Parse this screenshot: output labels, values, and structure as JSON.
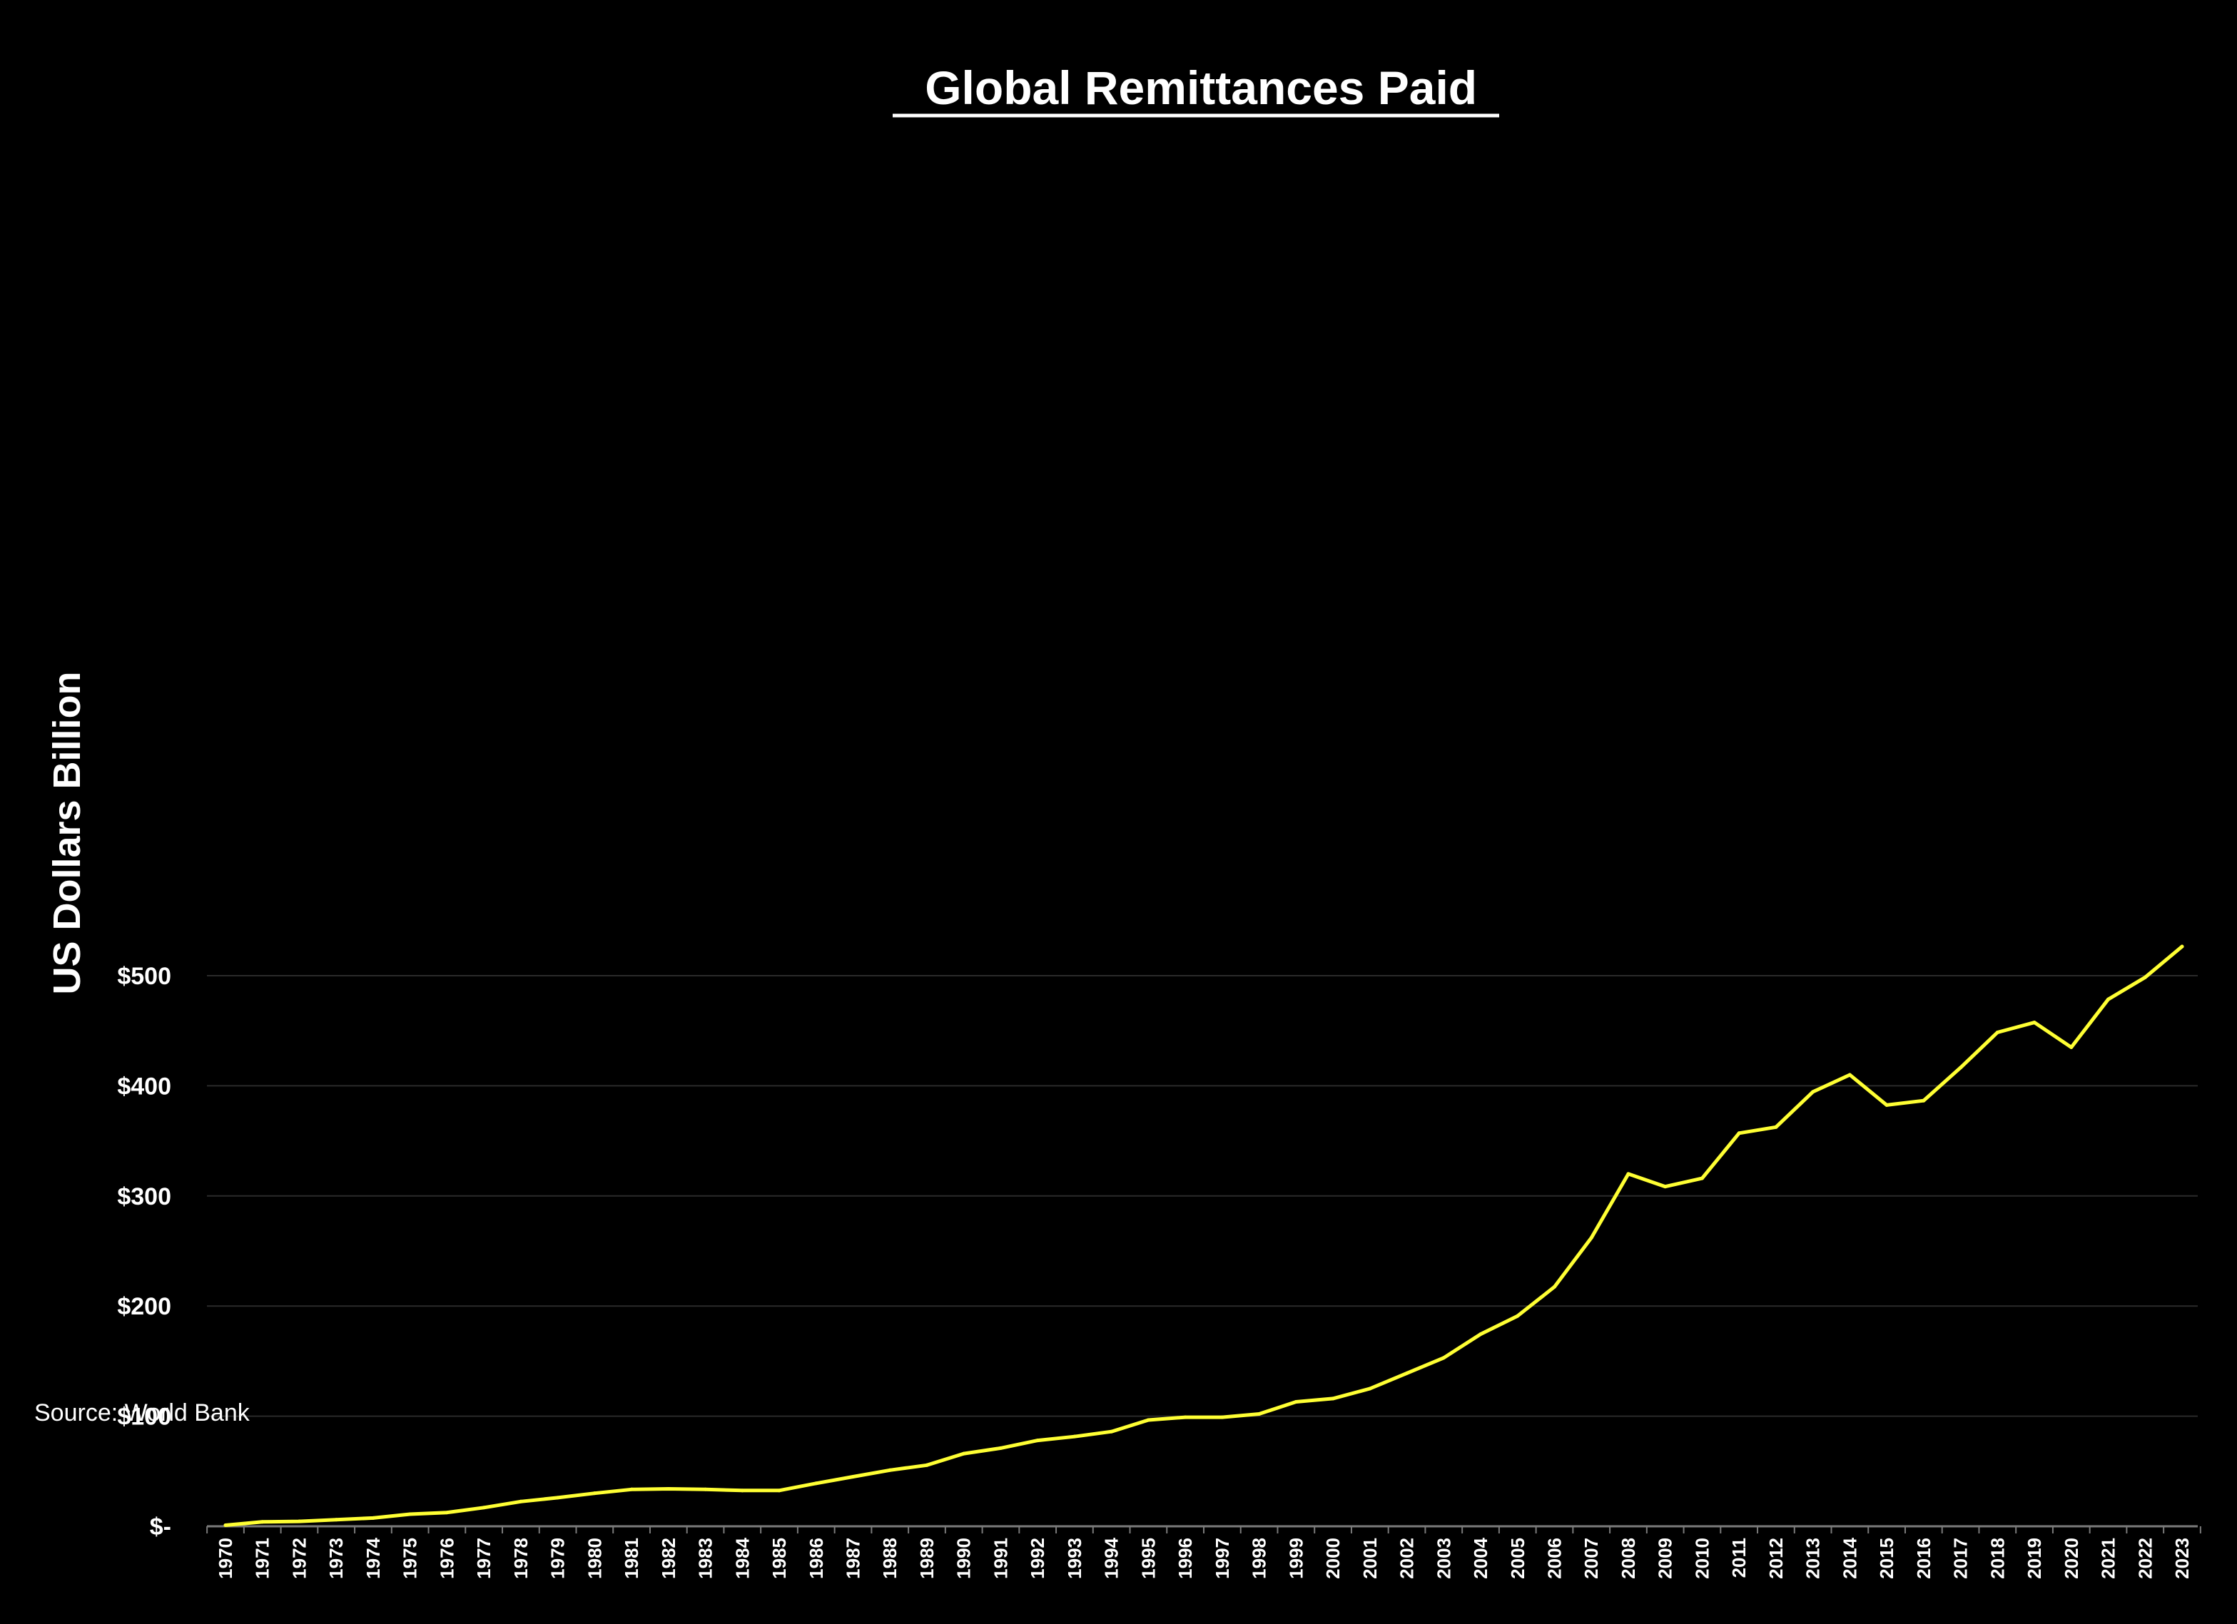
{
  "chart_data": {
    "type": "line",
    "title": " Global Remittances Paid",
    "xlabel": "",
    "ylabel": "US Dollars Billion",
    "source": "Source: World Bank",
    "ylim": [
      0,
      530
    ],
    "yticks": [
      0,
      100,
      200,
      300,
      400,
      500
    ],
    "ytick_labels": [
      "$-",
      "$100",
      "$200",
      "$300",
      "$400",
      "$500"
    ],
    "grid": true,
    "legend": "none",
    "colors": {
      "background": "#000000",
      "line": "#ffff33",
      "grid": "#2a2a2a",
      "text": "#ffffff"
    },
    "x": [
      "1970",
      "1971",
      "1972",
      "1973",
      "1974",
      "1975",
      "1976",
      "1977",
      "1978",
      "1979",
      "1980",
      "1981",
      "1982",
      "1983",
      "1984",
      "1985",
      "1986",
      "1987",
      "1988",
      "1989",
      "1990",
      "1991",
      "1992",
      "1993",
      "1994",
      "1995",
      "1996",
      "1997",
      "1998",
      "1999",
      "2000",
      "2001",
      "2002",
      "2003",
      "2004",
      "2005",
      "2006",
      "2007",
      "2008",
      "2009",
      "2010",
      "2011",
      "2012",
      "2013",
      "2014",
      "2015",
      "2016",
      "2017",
      "2018",
      "2019",
      "2020",
      "2021",
      "2022",
      "2023"
    ],
    "series": [
      {
        "values": [
          1,
          4,
          4.5,
          6,
          7.5,
          11,
          12.5,
          17,
          22.5,
          26,
          30,
          33.5,
          34,
          33.5,
          32.5,
          32.5,
          39,
          45,
          51,
          55.5,
          66,
          71,
          78,
          81.5,
          86,
          96.5,
          99,
          99,
          102,
          113,
          116,
          125,
          139,
          153,
          174.5,
          191,
          217.5,
          262,
          320,
          308.5,
          316,
          357,
          362.5,
          394.5,
          410,
          382.5,
          386.5,
          416.5,
          448.5,
          457.5,
          435,
          478.5,
          498.5,
          526.5
        ]
      }
    ]
  }
}
